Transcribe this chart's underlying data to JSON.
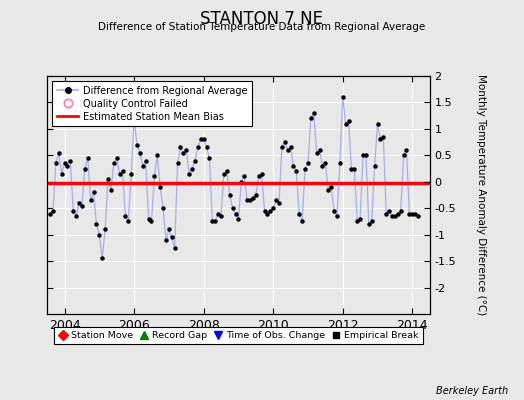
{
  "title": "STANTON 7 NE",
  "subtitle": "Difference of Station Temperature Data from Regional Average",
  "ylabel_right": "Monthly Temperature Anomaly Difference (°C)",
  "bias": -0.03,
  "ylim": [
    -2.5,
    2.0
  ],
  "yticks": [
    -2.0,
    -1.5,
    -1.0,
    -0.5,
    0.0,
    0.5,
    1.0,
    1.5,
    2.0
  ],
  "xlim": [
    2003.5,
    2014.5
  ],
  "xticks": [
    2004,
    2006,
    2008,
    2010,
    2012,
    2014
  ],
  "line_color": "#4444cc",
  "line_color_light": "#aaaaee",
  "marker_color": "#000000",
  "bias_color": "#ff0000",
  "bg_color": "#e8e8e8",
  "plot_bg_color": "#e8e8e8",
  "grid_color": "#ffffff",
  "watermark": "Berkeley Earth",
  "times": [
    2003.583,
    2003.667,
    2003.75,
    2003.833,
    2003.917,
    2004.0,
    2004.083,
    2004.167,
    2004.25,
    2004.333,
    2004.417,
    2004.5,
    2004.583,
    2004.667,
    2004.75,
    2004.833,
    2004.917,
    2005.0,
    2005.083,
    2005.167,
    2005.25,
    2005.333,
    2005.417,
    2005.5,
    2005.583,
    2005.667,
    2005.75,
    2005.833,
    2005.917,
    2006.0,
    2006.083,
    2006.167,
    2006.25,
    2006.333,
    2006.417,
    2006.5,
    2006.583,
    2006.667,
    2006.75,
    2006.833,
    2006.917,
    2007.0,
    2007.083,
    2007.167,
    2007.25,
    2007.333,
    2007.417,
    2007.5,
    2007.583,
    2007.667,
    2007.75,
    2007.833,
    2007.917,
    2008.0,
    2008.083,
    2008.167,
    2008.25,
    2008.333,
    2008.417,
    2008.5,
    2008.583,
    2008.667,
    2008.75,
    2008.833,
    2008.917,
    2009.0,
    2009.083,
    2009.167,
    2009.25,
    2009.333,
    2009.417,
    2009.5,
    2009.583,
    2009.667,
    2009.75,
    2009.833,
    2009.917,
    2010.0,
    2010.083,
    2010.167,
    2010.25,
    2010.333,
    2010.417,
    2010.5,
    2010.583,
    2010.667,
    2010.75,
    2010.833,
    2010.917,
    2011.0,
    2011.083,
    2011.167,
    2011.25,
    2011.333,
    2011.417,
    2011.5,
    2011.583,
    2011.667,
    2011.75,
    2011.833,
    2011.917,
    2012.0,
    2012.083,
    2012.167,
    2012.25,
    2012.333,
    2012.417,
    2012.5,
    2012.583,
    2012.667,
    2012.75,
    2012.833,
    2012.917,
    2013.0,
    2013.083,
    2013.167,
    2013.25,
    2013.333,
    2013.417,
    2013.5,
    2013.583,
    2013.667,
    2013.75,
    2013.833,
    2013.917,
    2014.0,
    2014.083,
    2014.167
  ],
  "values": [
    -0.6,
    -0.55,
    0.35,
    0.55,
    0.15,
    0.35,
    0.3,
    0.4,
    -0.55,
    -0.65,
    -0.4,
    -0.45,
    0.25,
    0.45,
    -0.35,
    -0.2,
    -0.8,
    -1.0,
    -1.45,
    -0.9,
    0.05,
    -0.15,
    0.35,
    0.45,
    0.15,
    0.2,
    -0.65,
    -0.75,
    0.15,
    1.15,
    0.7,
    0.55,
    0.3,
    0.4,
    -0.7,
    -0.75,
    0.1,
    0.5,
    -0.1,
    -0.5,
    -1.1,
    -0.9,
    -1.05,
    -1.25,
    0.35,
    0.65,
    0.55,
    0.6,
    0.15,
    0.25,
    0.4,
    0.65,
    0.8,
    0.8,
    0.65,
    0.45,
    -0.75,
    -0.75,
    -0.6,
    -0.65,
    0.15,
    0.2,
    -0.25,
    -0.5,
    -0.6,
    -0.7,
    0.0,
    0.1,
    -0.35,
    -0.35,
    -0.3,
    -0.25,
    0.1,
    0.15,
    -0.55,
    -0.6,
    -0.55,
    -0.5,
    -0.35,
    -0.4,
    0.65,
    0.75,
    0.6,
    0.65,
    0.3,
    0.2,
    -0.6,
    -0.75,
    0.25,
    0.35,
    1.2,
    1.3,
    0.55,
    0.6,
    0.3,
    0.35,
    -0.15,
    -0.1,
    -0.55,
    -0.65,
    0.35,
    1.6,
    1.1,
    1.15,
    0.25,
    0.25,
    -0.75,
    -0.7,
    0.5,
    0.5,
    -0.8,
    -0.75,
    0.3,
    1.1,
    0.8,
    0.85,
    -0.6,
    -0.55,
    -0.65,
    -0.65,
    -0.6,
    -0.55,
    0.5,
    0.6,
    -0.6,
    -0.6,
    -0.6,
    -0.65
  ]
}
